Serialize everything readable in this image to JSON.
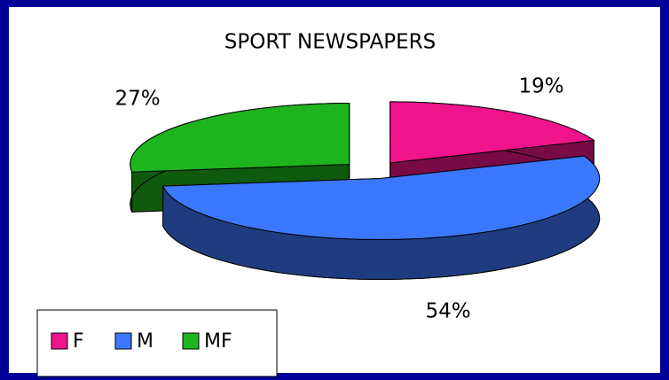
{
  "chart_data": {
    "type": "pie",
    "title": "SPORT NEWSPAPERS",
    "categories": [
      "F",
      "M",
      "MF"
    ],
    "values": [
      19,
      54,
      27
    ],
    "value_labels": [
      "19%",
      "54%",
      "27%"
    ],
    "colors": [
      "#f0148c",
      "#3c78ff",
      "#1eb41e"
    ],
    "legend": "bottom-left"
  }
}
